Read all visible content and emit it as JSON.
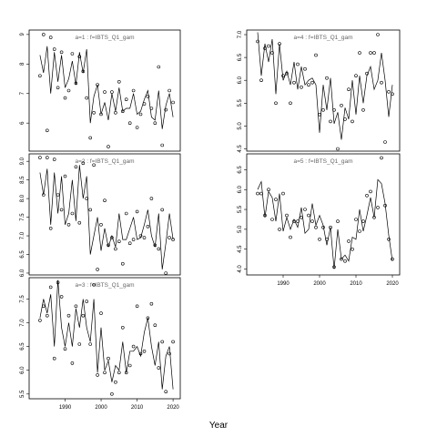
{
  "chart_data": {
    "type": "line",
    "xlabel": "Year",
    "x_range": [
      1980,
      2022
    ],
    "x_ticks": [
      1990,
      2000,
      2010,
      2020
    ],
    "panels": [
      {
        "id": "a1",
        "label": "a=1 : f=IBTS_Q1_gam",
        "ylim": [
          5.05,
          9.15
        ],
        "yticks": [
          6,
          7,
          8,
          9
        ],
        "line": {
          "x": [
            1983,
            1984,
            1985,
            1986,
            1987,
            1988,
            1989,
            1990,
            1991,
            1992,
            1993,
            1994,
            1995,
            1996,
            1997,
            1998,
            1999,
            2000,
            2001,
            2002,
            2003,
            2004,
            2005,
            2006,
            2007,
            2008,
            2009,
            2010,
            2011,
            2012,
            2013,
            2014,
            2015,
            2016,
            2017,
            2018,
            2019,
            2020
          ],
          "y": [
            8.3,
            7.7,
            8.6,
            7.0,
            8.4,
            7.4,
            8.3,
            7.2,
            7.5,
            8.1,
            7.3,
            8.4,
            7.7,
            8.5,
            6.0,
            6.9,
            7.3,
            6.3,
            6.7,
            6.1,
            7.0,
            6.4,
            7.2,
            6.4,
            6.5,
            6.5,
            7.0,
            6.3,
            6.4,
            6.8,
            7.1,
            6.2,
            6.1,
            7.1,
            5.8,
            6.6,
            7.0,
            6.2
          ]
        },
        "points": {
          "x": [
            1983,
            1984,
            1985,
            1986,
            1987,
            1988,
            1989,
            1990,
            1991,
            1992,
            1993,
            1994,
            1995,
            1996,
            1997,
            1998,
            1999,
            2000,
            2001,
            2002,
            2003,
            2004,
            2005,
            2006,
            2007,
            2008,
            2009,
            2010,
            2011,
            2012,
            2013,
            2014,
            2015,
            2016,
            2017,
            2018,
            2019,
            2020
          ],
          "y": [
            7.6,
            9.0,
            5.75,
            8.9,
            8.5,
            7.2,
            8.4,
            6.85,
            7.1,
            8.35,
            7.35,
            8.25,
            7.75,
            6.85,
            5.5,
            6.35,
            7.3,
            6.3,
            7.05,
            5.2,
            7.05,
            6.35,
            7.4,
            6.4,
            6.8,
            6.0,
            7.1,
            5.85,
            6.3,
            6.65,
            6.9,
            6.5,
            6.0,
            7.9,
            5.25,
            6.45,
            7.1,
            6.7
          ]
        }
      },
      {
        "id": "a2",
        "label": "a=2 : f=IBTS_Q1_gam",
        "ylim": [
          5.95,
          9.2
        ],
        "yticks": [
          6.0,
          6.5,
          7.0,
          7.5,
          8.0,
          8.5,
          9.0
        ],
        "line": {
          "x": [
            1983,
            1984,
            1985,
            1986,
            1987,
            1988,
            1989,
            1990,
            1991,
            1992,
            1993,
            1994,
            1995,
            1996,
            1997,
            1998,
            1999,
            2000,
            2001,
            2002,
            2003,
            2004,
            2005,
            2006,
            2007,
            2008,
            2009,
            2010,
            2011,
            2012,
            2013,
            2014,
            2015,
            2016,
            2017,
            2018,
            2019,
            2020
          ],
          "y": [
            8.7,
            8.1,
            8.8,
            7.3,
            8.7,
            7.6,
            8.6,
            7.3,
            7.6,
            8.5,
            7.4,
            8.9,
            8.0,
            8.6,
            6.5,
            7.0,
            7.5,
            6.6,
            7.2,
            6.7,
            7.0,
            6.7,
            7.6,
            6.9,
            6.9,
            7.2,
            7.5,
            6.9,
            6.95,
            7.3,
            7.7,
            7.0,
            6.7,
            7.6,
            6.1,
            6.8,
            7.6,
            6.9
          ]
        },
        "points": {
          "x": [
            1983,
            1984,
            1985,
            1986,
            1987,
            1988,
            1989,
            1990,
            1991,
            1992,
            1993,
            1994,
            1995,
            1996,
            1997,
            1998,
            1999,
            2000,
            2001,
            2002,
            2003,
            2004,
            2005,
            2006,
            2007,
            2008,
            2009,
            2010,
            2011,
            2012,
            2013,
            2014,
            2015,
            2016,
            2017,
            2018,
            2019,
            2020
          ],
          "y": [
            9.1,
            8.1,
            9.1,
            7.2,
            9.05,
            8.1,
            7.7,
            8.6,
            7.3,
            7.6,
            8.85,
            7.35,
            8.95,
            8.0,
            7.7,
            8.9,
            6.1,
            7.3,
            7.95,
            6.75,
            6.95,
            6.65,
            6.85,
            6.25,
            7.6,
            6.8,
            6.9,
            7.65,
            7.0,
            6.95,
            7.25,
            8.0,
            6.75,
            6.65,
            7.7,
            6.0,
            6.95,
            6.9
          ]
        }
      },
      {
        "id": "a3",
        "label": "a=3 : f=IBTS_Q1_gam",
        "ylim": [
          5.4,
          7.95
        ],
        "yticks": [
          5.5,
          6.0,
          6.5,
          7.0,
          7.5
        ],
        "line": {
          "x": [
            1983,
            1984,
            1985,
            1986,
            1987,
            1988,
            1989,
            1990,
            1991,
            1992,
            1993,
            1994,
            1995,
            1996,
            1997,
            1998,
            1999,
            2000,
            2001,
            2002,
            2003,
            2004,
            2005,
            2006,
            2007,
            2008,
            2009,
            2010,
            2011,
            2012,
            2013,
            2014,
            2015,
            2016,
            2017,
            2018,
            2019,
            2020
          ],
          "y": [
            7.1,
            7.5,
            7.2,
            7.6,
            6.5,
            7.9,
            6.9,
            6.5,
            7.0,
            6.5,
            7.3,
            6.9,
            7.5,
            6.9,
            6.6,
            7.5,
            5.95,
            6.9,
            6.0,
            6.2,
            5.75,
            6.1,
            6.0,
            6.6,
            5.95,
            6.4,
            6.4,
            6.5,
            6.3,
            6.8,
            7.1,
            6.5,
            6.1,
            6.6,
            5.6,
            6.3,
            6.5,
            5.6
          ]
        },
        "points": {
          "x": [
            1983,
            1984,
            1985,
            1986,
            1987,
            1988,
            1989,
            1990,
            1991,
            1992,
            1993,
            1994,
            1995,
            1996,
            1997,
            1998,
            1999,
            2000,
            2001,
            2002,
            2003,
            2004,
            2005,
            2006,
            2007,
            2008,
            2009,
            2010,
            2011,
            2012,
            2013,
            2014,
            2015,
            2016,
            2017,
            2018,
            2019,
            2020
          ],
          "y": [
            7.05,
            7.35,
            7.15,
            7.75,
            6.25,
            7.85,
            7.55,
            6.45,
            7.15,
            6.15,
            7.35,
            6.55,
            7.15,
            7.45,
            6.55,
            7.8,
            5.9,
            7.2,
            5.95,
            6.25,
            5.5,
            5.75,
            5.95,
            6.9,
            5.95,
            6.1,
            6.5,
            7.35,
            6.35,
            6.4,
            7.1,
            7.4,
            6.95,
            6.05,
            6.6,
            5.55,
            6.35,
            6.6
          ]
        }
      },
      {
        "id": "a4",
        "label": "a=4 : f=IBTS_Q1_gam",
        "ylim": [
          4.45,
          7.1
        ],
        "yticks": [
          4.5,
          5.0,
          5.5,
          6.0,
          6.5,
          7.0
        ],
        "line": {
          "x": [
            1983,
            1984,
            1985,
            1986,
            1987,
            1988,
            1989,
            1990,
            1991,
            1992,
            1993,
            1994,
            1995,
            1996,
            1997,
            1998,
            1999,
            2000,
            2001,
            2002,
            2003,
            2004,
            2005,
            2006,
            2007,
            2008,
            2009,
            2010,
            2011,
            2012,
            2013,
            2014,
            2015,
            2016,
            2017,
            2018,
            2019,
            2020
          ],
          "y": [
            7.05,
            6.1,
            6.8,
            6.4,
            6.9,
            5.7,
            6.8,
            6.0,
            6.2,
            5.9,
            6.4,
            5.8,
            6.3,
            5.9,
            6.0,
            6.05,
            5.9,
            4.85,
            5.9,
            5.35,
            6.05,
            5.05,
            5.3,
            4.7,
            5.4,
            5.15,
            6.0,
            5.25,
            6.1,
            5.5,
            6.1,
            6.3,
            5.8,
            6.0,
            6.6,
            6.0,
            5.2,
            5.9
          ]
        },
        "points": {
          "x": [
            1983,
            1984,
            1985,
            1986,
            1987,
            1988,
            1989,
            1990,
            1991,
            1992,
            1993,
            1994,
            1995,
            1996,
            1997,
            1998,
            1999,
            2000,
            2001,
            2002,
            2003,
            2004,
            2005,
            2006,
            2007,
            2008,
            2009,
            2010,
            2011,
            2012,
            2013,
            2014,
            2015,
            2016,
            2017,
            2018,
            2019,
            2020
          ],
          "y": [
            6.85,
            6.0,
            6.7,
            6.75,
            6.6,
            5.5,
            6.8,
            6.1,
            6.15,
            5.5,
            5.95,
            6.35,
            5.85,
            6.25,
            5.9,
            5.95,
            6.55,
            5.25,
            5.35,
            6.05,
            5.1,
            5.35,
            4.5,
            5.45,
            5.15,
            5.8,
            5.1,
            6.1,
            6.6,
            5.35,
            6.15,
            6.6,
            6.6,
            7.0,
            5.95,
            4.65,
            5.75,
            5.7
          ]
        }
      },
      {
        "id": "a5",
        "label": "a=5 : f=IBTS_Q1_gam",
        "ylim": [
          3.85,
          6.9
        ],
        "yticks": [
          4.0,
          4.5,
          5.0,
          5.5,
          6.0,
          6.5
        ],
        "line": {
          "x": [
            1983,
            1984,
            1985,
            1986,
            1987,
            1988,
            1989,
            1990,
            1991,
            1992,
            1993,
            1994,
            1995,
            1996,
            1997,
            1998,
            1999,
            2000,
            2001,
            2002,
            2003,
            2004,
            2005,
            2006,
            2007,
            2008,
            2009,
            2010,
            2011,
            2012,
            2013,
            2014,
            2015,
            2016,
            2017,
            2018,
            2019,
            2020
          ],
          "y": [
            6.0,
            6.2,
            5.3,
            5.95,
            5.8,
            5.2,
            5.9,
            4.95,
            5.3,
            5.0,
            5.25,
            5.05,
            5.55,
            4.9,
            5.0,
            5.65,
            5.1,
            5.35,
            5.1,
            4.6,
            5.05,
            4.0,
            5.0,
            4.25,
            4.35,
            4.2,
            4.8,
            4.75,
            5.5,
            4.95,
            5.35,
            5.8,
            5.3,
            6.25,
            6.15,
            5.65,
            4.85,
            4.2
          ]
        },
        "points": {
          "x": [
            1983,
            1984,
            1985,
            1986,
            1987,
            1988,
            1989,
            1990,
            1991,
            1992,
            1993,
            1994,
            1995,
            1996,
            1997,
            1998,
            1999,
            2000,
            2001,
            2002,
            2003,
            2004,
            2005,
            2006,
            2007,
            2008,
            2009,
            2010,
            2011,
            2012,
            2013,
            2014,
            2015,
            2016,
            2017,
            2018,
            2019,
            2020
          ],
          "y": [
            5.9,
            5.9,
            5.35,
            6.0,
            5.25,
            5.75,
            5.0,
            5.9,
            5.35,
            4.8,
            5.2,
            5.2,
            5.3,
            5.5,
            5.35,
            5.2,
            5.05,
            4.75,
            5.05,
            4.75,
            5.05,
            4.05,
            5.2,
            4.25,
            4.2,
            4.7,
            4.5,
            5.25,
            4.95,
            5.2,
            5.85,
            5.95,
            5.3,
            5.55,
            6.8,
            5.6,
            4.75,
            4.25
          ]
        }
      }
    ]
  }
}
